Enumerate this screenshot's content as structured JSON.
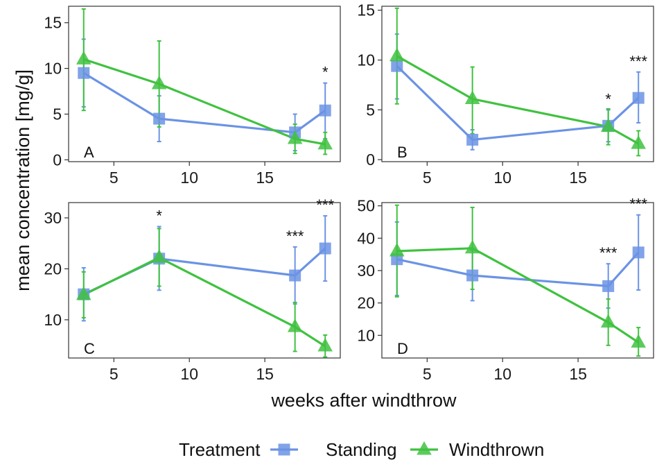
{
  "chart_data": {
    "type": "line",
    "xlabel": "weeks after windthrow",
    "ylabel": "mean concentration [mg/g]",
    "colors": {
      "Standing": "#6b93e4",
      "Windthrown": "#3fc23f"
    },
    "legend": {
      "title": "Treatment",
      "placement": "bottom",
      "entries": [
        {
          "name": "Standing",
          "shape": "square"
        },
        {
          "name": "Windthrown",
          "shape": "triangle"
        }
      ]
    },
    "panels": [
      {
        "label": "A",
        "xlim": [
          2,
          20
        ],
        "xticks": [
          5,
          10,
          15
        ],
        "ylim": [
          -0.2,
          16.8
        ],
        "yticks": [
          0,
          5,
          10,
          15
        ],
        "series": [
          {
            "name": "Standing",
            "x": [
              3,
              8,
              17,
              19
            ],
            "y": [
              9.5,
              4.5,
              3.0,
              5.4
            ],
            "lower": [
              5.8,
              2.0,
              1.0,
              2.3
            ],
            "upper": [
              13.2,
              7.0,
              5.0,
              8.4
            ]
          },
          {
            "name": "Windthrown",
            "x": [
              3,
              8,
              17,
              19
            ],
            "y": [
              11.0,
              8.3,
              2.3,
              1.7
            ],
            "lower": [
              5.4,
              3.6,
              0.7,
              0.6
            ],
            "upper": [
              16.5,
              13.0,
              3.9,
              3.0
            ]
          }
        ],
        "annotations": [
          {
            "x": 19,
            "y": 8.4,
            "text": "*"
          }
        ]
      },
      {
        "label": "B",
        "xlim": [
          2,
          20
        ],
        "xticks": [
          5,
          10,
          15
        ],
        "ylim": [
          -0.2,
          15.4
        ],
        "yticks": [
          0,
          5,
          10,
          15
        ],
        "series": [
          {
            "name": "Standing",
            "x": [
              3,
              8,
              17,
              19
            ],
            "y": [
              9.4,
              2.0,
              3.4,
              6.2
            ],
            "lower": [
              6.1,
              1.0,
              1.8,
              3.7
            ],
            "upper": [
              12.6,
              3.0,
              5.0,
              8.8
            ]
          },
          {
            "name": "Windthrown",
            "x": [
              3,
              8,
              17,
              19
            ],
            "y": [
              10.4,
              6.1,
              3.3,
              1.6
            ],
            "lower": [
              5.6,
              2.6,
              1.5,
              0.4
            ],
            "upper": [
              15.2,
              9.3,
              5.1,
              2.9
            ]
          }
        ],
        "annotations": [
          {
            "x": 17,
            "y": 5.0,
            "text": "*"
          },
          {
            "x": 19,
            "y": 8.8,
            "text": "***"
          }
        ]
      },
      {
        "label": "C",
        "xlim": [
          2,
          20
        ],
        "xticks": [
          5,
          10,
          15
        ],
        "ylim": [
          2.5,
          33
        ],
        "yticks": [
          10,
          20,
          30
        ],
        "series": [
          {
            "name": "Standing",
            "x": [
              3,
              8,
              17,
              19
            ],
            "y": [
              15.0,
              22.0,
              18.7,
              24.0
            ],
            "lower": [
              9.8,
              15.8,
              13.1,
              17.6
            ],
            "upper": [
              20.2,
              28.3,
              24.3,
              30.4
            ]
          },
          {
            "name": "Windthrown",
            "x": [
              3,
              8,
              17,
              19
            ],
            "y": [
              14.9,
              22.2,
              8.6,
              4.8
            ],
            "lower": [
              10.4,
              16.6,
              3.8,
              2.7
            ],
            "upper": [
              19.4,
              27.9,
              13.4,
              7.0
            ]
          }
        ],
        "annotations": [
          {
            "x": 8,
            "y": 28.3,
            "text": "*"
          },
          {
            "x": 17,
            "y": 24.3,
            "text": "***"
          },
          {
            "x": 19,
            "y": 30.4,
            "text": "***"
          }
        ]
      },
      {
        "label": "D",
        "xlim": [
          2,
          20
        ],
        "xticks": [
          5,
          10,
          15
        ],
        "ylim": [
          3,
          51
        ],
        "yticks": [
          10,
          20,
          30,
          40,
          50
        ],
        "series": [
          {
            "name": "Standing",
            "x": [
              3,
              8,
              17,
              19
            ],
            "y": [
              33.5,
              28.5,
              25.2,
              35.6
            ],
            "lower": [
              22.3,
              20.7,
              18.4,
              24.0
            ],
            "upper": [
              45.0,
              36.4,
              32.1,
              47.2
            ]
          },
          {
            "name": "Windthrown",
            "x": [
              3,
              8,
              17,
              19
            ],
            "y": [
              36.0,
              36.9,
              14.0,
              7.8
            ],
            "lower": [
              21.9,
              24.2,
              6.9,
              3.6
            ],
            "upper": [
              50.2,
              49.5,
              21.2,
              12.4
            ]
          }
        ],
        "annotations": [
          {
            "x": 17,
            "y": 32.1,
            "text": "***"
          },
          {
            "x": 19,
            "y": 47.2,
            "text": "***"
          }
        ]
      }
    ]
  }
}
